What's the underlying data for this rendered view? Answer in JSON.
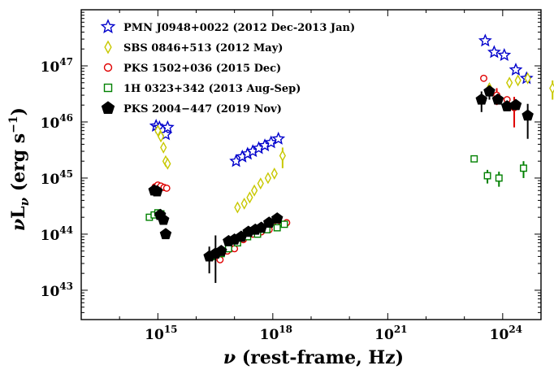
{
  "chart_data": {
    "type": "scatter",
    "xlabel": "ν (rest-frame, Hz)",
    "ylabel": "νLν (erg s⁻¹)",
    "x_scale": "log",
    "y_scale": "log",
    "xlim": [
      10000000000000.0,
      1e+25
    ],
    "ylim": [
      3e+42,
      1e+48
    ],
    "x_ticks": [
      {
        "value": 1000000000000000.0,
        "label": "10^15"
      },
      {
        "value": 1e+18,
        "label": "10^18"
      },
      {
        "value": 1e+21,
        "label": "10^21"
      },
      {
        "value": 1e+24,
        "label": "10^24"
      }
    ],
    "y_ticks": [
      {
        "value": 1e+43,
        "label": "10^43"
      },
      {
        "value": 1e+44,
        "label": "10^44"
      },
      {
        "value": 1e+45,
        "label": "10^45"
      },
      {
        "value": 1e+46,
        "label": "10^46"
      },
      {
        "value": 1e+47,
        "label": "10^47"
      }
    ],
    "legend_position": "top-left",
    "series": [
      {
        "name": "PMN J0948+0022 (2012 Dec-2013 Jan)",
        "color": "#0000cc",
        "marker": "star",
        "filled": false,
        "points": [
          [
            900000000000000.0,
            8.5e+45
          ],
          [
            1100000000000000.0,
            8e+45
          ],
          [
            1350000000000000.0,
            7e+45
          ],
          [
            1600000000000000.0,
            6e+45
          ],
          [
            1800000000000000.0,
            8e+45
          ],
          [
            1.1e+17,
            2e+45
          ],
          [
            1.6e+17,
            2.4e+45
          ],
          [
            2.2e+17,
            2.7e+45
          ],
          [
            3e+17,
            3e+45
          ],
          [
            4.3e+17,
            3.4e+45
          ],
          [
            6.2e+17,
            3.8e+45
          ],
          [
            9e+17,
            4.3e+45
          ],
          [
            1.4e+18,
            5e+45
          ],
          [
            3.5e+23,
            2.8e+47
          ],
          [
            6e+23,
            1.75e+47
          ],
          [
            1.1e+24,
            1.55e+47
          ],
          [
            2.2e+24,
            8.5e+46
          ],
          [
            4.2e+24,
            6e+46
          ]
        ],
        "errors": [
          [],
          [],
          [],
          [],
          [],
          [],
          [],
          [],
          [],
          [],
          [],
          [],
          [],
          [],
          [],
          [],
          [
            3e+45,
            3e+45
          ],
          [
            2.5e+45,
            3e+45
          ]
        ]
      },
      {
        "name": "SBS 0846+513 (2012 May)",
        "color": "#c8c800",
        "marker": "diamond",
        "filled": false,
        "points": [
          [
            1000000000000000.0,
            7e+45
          ],
          [
            1200000000000000.0,
            5.5e+45
          ],
          [
            1400000000000000.0,
            3.5e+45
          ],
          [
            1600000000000000.0,
            2e+45
          ],
          [
            1800000000000000.0,
            1.8e+45
          ],
          [
            1.2e+17,
            3e+44
          ],
          [
            1.8e+17,
            3.5e+44
          ],
          [
            2.5e+17,
            4.5e+44
          ],
          [
            3.3e+17,
            6e+44
          ],
          [
            4.8e+17,
            8e+44
          ],
          [
            7.5e+17,
            1e+45
          ],
          [
            1.1e+18,
            1.2e+45
          ],
          [
            1.8e+18,
            2.5e+45
          ],
          [
            4.5e+23,
            4e+46
          ],
          [
            1.5e+24,
            5e+46
          ],
          [
            2.5e+24,
            5.5e+46
          ],
          [
            4.5e+24,
            6e+46
          ],
          [
            2e+25,
            4e+46
          ]
        ],
        "errors": [
          [],
          [],
          [],
          [],
          [],
          [
            1e+43,
            1e+43
          ],
          [
            1e+43,
            1e+43
          ],
          [
            1e+43,
            1e+43
          ],
          [
            1e+43,
            1e+43
          ],
          [],
          [],
          [],
          [
            1e+45,
            1e+45
          ],
          [],
          [],
          [],
          [],
          [
            1.5e+46,
            1.5e+46
          ]
        ]
      },
      {
        "name": "PKS 1502+036 (2015 Dec)",
        "color": "#e00000",
        "marker": "circle",
        "filled": false,
        "points": [
          [
            850000000000000.0,
            7e+44
          ],
          [
            1000000000000000.0,
            7.5e+44
          ],
          [
            1200000000000000.0,
            7.2e+44
          ],
          [
            1450000000000000.0,
            6.8e+44
          ],
          [
            1700000000000000.0,
            6.6e+44
          ],
          [
            4.2e+16,
            3.5e+43
          ],
          [
            6.5e+16,
            5e+43
          ],
          [
            1e+17,
            5.5e+43
          ],
          [
            1.7e+17,
            8e+43
          ],
          [
            3e+17,
            1e+44
          ],
          [
            5e+17,
            1.1e+44
          ],
          [
            8e+17,
            1.2e+44
          ],
          [
            1.3e+18,
            1.4e+44
          ],
          [
            2.3e+18,
            1.6e+44
          ],
          [
            3.2e+23,
            6e+46
          ],
          [
            7e+23,
            3e+46
          ],
          [
            1.3e+24,
            2.5e+46
          ],
          [
            2e+24,
            1.8e+46
          ]
        ],
        "errors": [
          [],
          [],
          [],
          [],
          [],
          [],
          [],
          [],
          [],
          [],
          [],
          [],
          [],
          [],
          [],
          [
            1e+46,
            1e+46
          ],
          [],
          [
            1e+46,
            1e+46
          ]
        ]
      },
      {
        "name": "1H 0323+342 (2013 Aug-Sep)",
        "color": "#008000",
        "marker": "square",
        "filled": false,
        "points": [
          [
            600000000000000.0,
            2e+44
          ],
          [
            800000000000000.0,
            2.2e+44
          ],
          [
            1000000000000000.0,
            2.4e+44
          ],
          [
            1200000000000000.0,
            2.3e+44
          ],
          [
            2.5e+16,
            4e+43
          ],
          [
            4.5e+16,
            4.5e+43
          ],
          [
            7e+16,
            5.5e+43
          ],
          [
            1.2e+17,
            7e+43
          ],
          [
            2.2e+17,
            9e+43
          ],
          [
            4e+17,
            1e+44
          ],
          [
            7e+17,
            1.2e+44
          ],
          [
            1.3e+18,
            1.3e+44
          ],
          [
            2e+18,
            1.5e+44
          ],
          [
            1.8e+23,
            2.2e+45
          ],
          [
            4e+23,
            1.1e+45
          ],
          [
            8e+23,
            1e+45
          ],
          [
            3.5e+24,
            1.5e+45
          ]
        ],
        "errors": [
          [],
          [],
          [],
          [],
          [],
          [],
          [],
          [],
          [],
          [],
          [],
          [],
          [],
          [],
          [
            3e+44,
            3e+44
          ],
          [
            3e+44,
            3e+44
          ],
          [
            5e+44,
            5e+44
          ]
        ]
      },
      {
        "name": "PKS 2004−447 (2019 Nov)",
        "color": "#000000",
        "marker": "pentagon",
        "filled": true,
        "points": [
          [
            800000000000000.0,
            6e+44
          ],
          [
            950000000000000.0,
            5.8e+44
          ],
          [
            1150000000000000.0,
            2.2e+44
          ],
          [
            1400000000000000.0,
            1.8e+44
          ],
          [
            1600000000000000.0,
            1e+44
          ],
          [
            2.2e+16,
            4e+43
          ],
          [
            3.2e+16,
            4.5e+43
          ],
          [
            4.5e+16,
            5e+43
          ],
          [
            7e+16,
            7.5e+43
          ],
          [
            1e+17,
            8e+43
          ],
          [
            1.5e+17,
            9e+43
          ],
          [
            2.3e+17,
            1.1e+44
          ],
          [
            3.5e+17,
            1.2e+44
          ],
          [
            5e+17,
            1.3e+44
          ],
          [
            8e+17,
            1.6e+44
          ],
          [
            1.3e+18,
            1.9e+44
          ],
          [
            2.8e+23,
            2.5e+46
          ],
          [
            4.5e+23,
            3.5e+46
          ],
          [
            7.5e+23,
            2.5e+46
          ],
          [
            1.3e+24,
            1.9e+46
          ],
          [
            2.2e+24,
            2e+46
          ],
          [
            4.5e+24,
            1.3e+46
          ]
        ],
        "errors": [
          [],
          [],
          [],
          [],
          [],
          [
            2e+43,
            2e+43
          ],
          [
            3.5e+43,
            5e+43
          ],
          [],
          [],
          [],
          [],
          [],
          [],
          [],
          [],
          [],
          [
            1e+46,
            1e+46
          ],
          [
            1e+46,
            1e+46
          ],
          [],
          [],
          [],
          [
            8e+45,
            8e+45
          ]
        ]
      }
    ]
  }
}
